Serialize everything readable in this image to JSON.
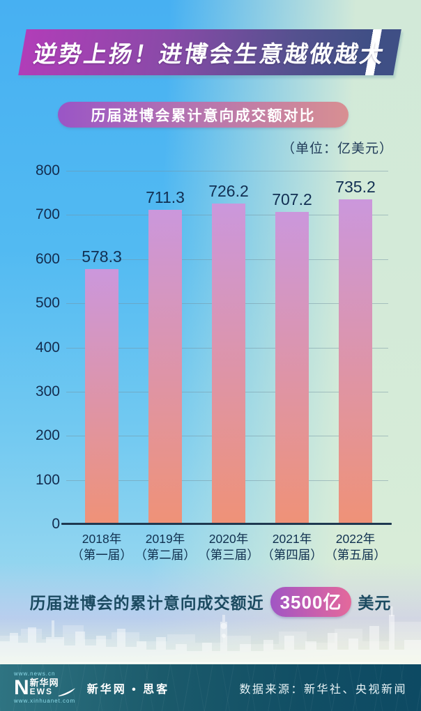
{
  "banner": {
    "title": "逆势上扬！进博会生意越做越大"
  },
  "subtitle_pill": {
    "label": "历届进博会累计意向成交额对比"
  },
  "unit_label": "（单位：亿美元）",
  "chart_data": {
    "type": "bar",
    "title": "历届进博会累计意向成交额对比",
    "unit": "亿美元",
    "categories": [
      {
        "year": "2018年",
        "session": "（第一届）"
      },
      {
        "year": "2019年",
        "session": "（第二届）"
      },
      {
        "year": "2020年",
        "session": "（第三届）"
      },
      {
        "year": "2021年",
        "session": "（第四届）"
      },
      {
        "year": "2022年",
        "session": "（第五届）"
      }
    ],
    "values": [
      578.3,
      711.3,
      726.2,
      707.2,
      735.2
    ],
    "ylim": [
      0,
      800
    ],
    "ytick_step": 100,
    "grid": true,
    "legend": "none",
    "bar_gradient_top": "#cb97dc",
    "bar_gradient_bottom": "#ef9277"
  },
  "summary": {
    "prefix": "历届进博会的累计意向成交额近",
    "highlight": "3500亿",
    "suffix": "美元"
  },
  "footer": {
    "logo": {
      "top_url": "www.news.cn",
      "n": "N",
      "cn": "新华网",
      "ews": "EWS",
      "bottom_url": "www.xinhuanet.com"
    },
    "brand": "新华网 • 思客",
    "source": "数据来源：新华社、央视新闻"
  },
  "colors": {
    "banner_gradient_left": "#b13db8",
    "banner_gradient_right": "#3f4f85",
    "subtitle_gradient_left": "#9a55c6",
    "subtitle_gradient_right": "#d88f92",
    "highlight_pill_left": "#a056c4",
    "highlight_pill_right": "#e4699b",
    "axis_text": "#132c4e",
    "footer_bg": "#114e64",
    "background_left": "#47b0f2",
    "background_right": "#dceed6"
  }
}
